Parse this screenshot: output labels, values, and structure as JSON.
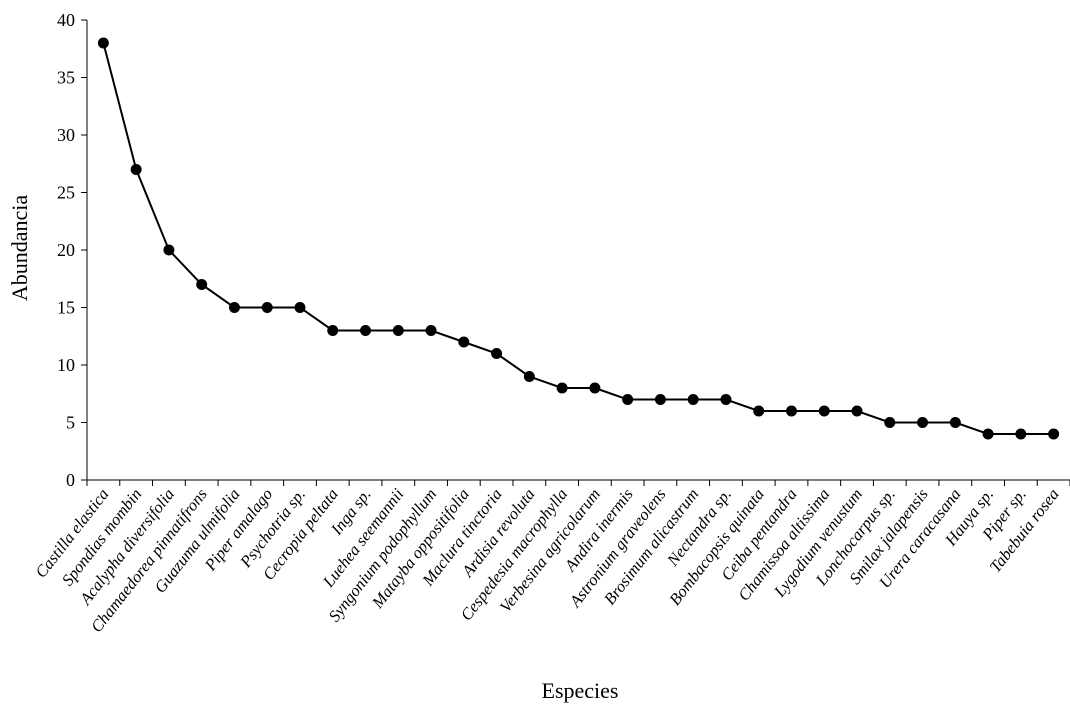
{
  "chart_data": {
    "type": "line",
    "xlabel": "Especies",
    "ylabel": "Abundancia",
    "ylim": [
      0,
      40
    ],
    "yticks": [
      0,
      5,
      10,
      15,
      20,
      25,
      30,
      35,
      40
    ],
    "grid": false,
    "legend": "none",
    "categories": [
      "Castilla elastica",
      "Spondias mombin",
      "Acalypha diversifolia",
      "Chamaedorea pinnatifrons",
      "Guazuma ulmifolia",
      "Piper amalago",
      "Psychotria sp.",
      "Cecropia peltata",
      "Inga sp.",
      "Luehea seemannii",
      "Syngonium podophyllum",
      "Matayba oppositifolia",
      "Maclura tinctoria",
      "Ardisia revoluta",
      "Cespedesia macrophylla",
      "Verbesina agricolarum",
      "Andira inermis",
      "Astronium graveolens",
      "Brosimum alicastrum",
      "Nectandra sp.",
      "Bombacopsis quinata",
      "Ceiba pentandra",
      "Chamissoa altissima",
      "Lygodium venustum",
      "Lonchocarpus sp.",
      "Smilax jalapensis",
      "Urera caracasana",
      "Hauya sp.",
      "Piper sp.",
      "Tabebuia rosea"
    ],
    "values": [
      38,
      27,
      20,
      17,
      15,
      15,
      15,
      13,
      13,
      13,
      13,
      12,
      11,
      9,
      8,
      8,
      7,
      7,
      7,
      7,
      6,
      6,
      6,
      6,
      5,
      5,
      5,
      4,
      4,
      4
    ],
    "colors": {
      "line": "#000000",
      "marker": "#000000",
      "axis": "#000000"
    }
  }
}
